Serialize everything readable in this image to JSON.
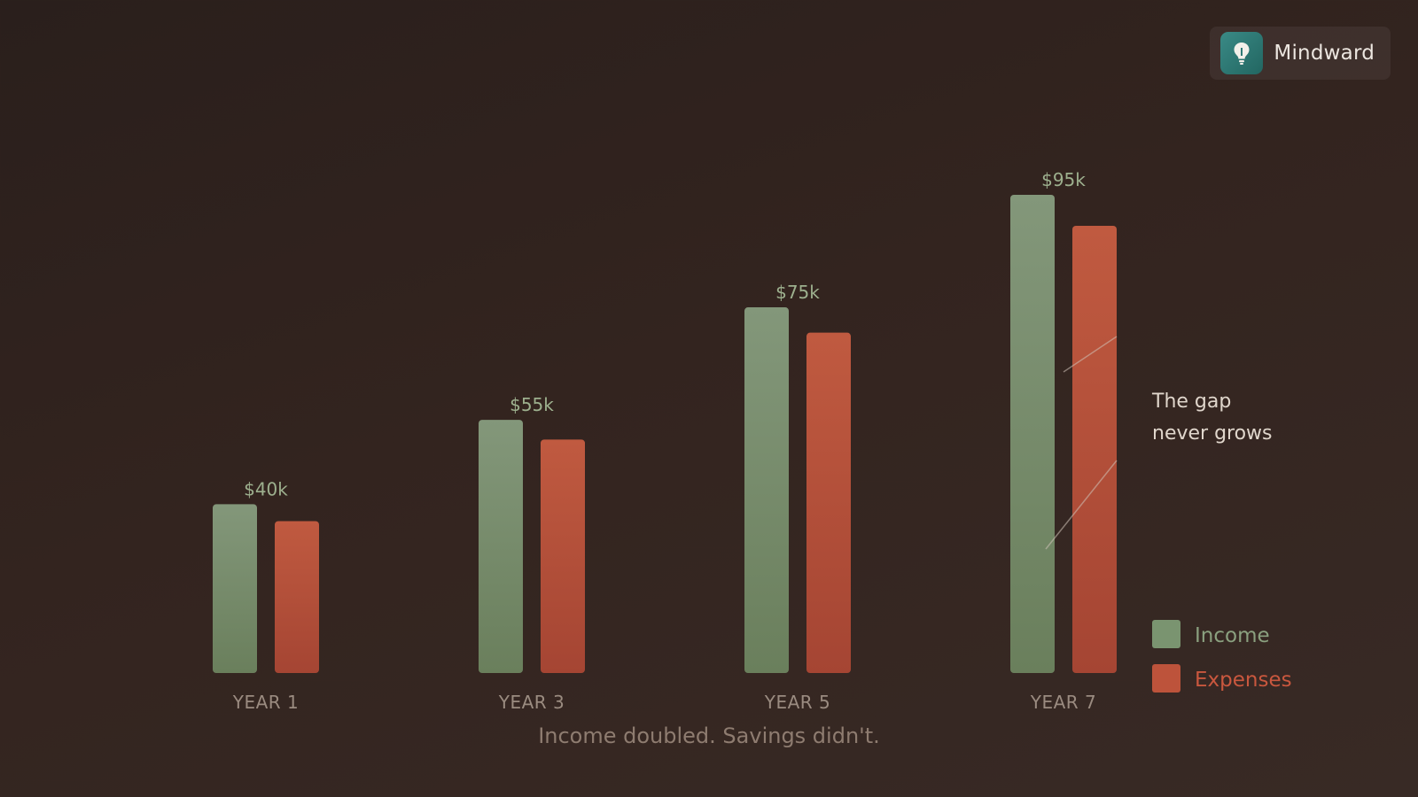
{
  "brand": {
    "name": "Mindward",
    "logo_icon": "lightbulb-icon",
    "logo_color": "#2f7a76"
  },
  "chart_data": {
    "type": "bar",
    "categories": [
      "YEAR 1",
      "YEAR 3",
      "YEAR 5",
      "YEAR 7"
    ],
    "series": [
      {
        "name": "Income",
        "values": [
          40,
          55,
          75,
          95
        ],
        "color": "#7a9470"
      },
      {
        "name": "Expenses",
        "values": [
          37,
          51.5,
          70.5,
          89.5
        ],
        "color": "#bd533b"
      }
    ],
    "data_labels": [
      "$40k",
      "$55k",
      "$75k",
      "$95k"
    ],
    "value_unit": "$k",
    "ylim": [
      10,
      100
    ],
    "title": "",
    "xlabel": "",
    "ylabel": "",
    "grid": false,
    "legend_position": "bottom-right",
    "annotation": [
      "The gap",
      "never grows"
    ],
    "caption": "Income doubled. Savings didn't."
  }
}
